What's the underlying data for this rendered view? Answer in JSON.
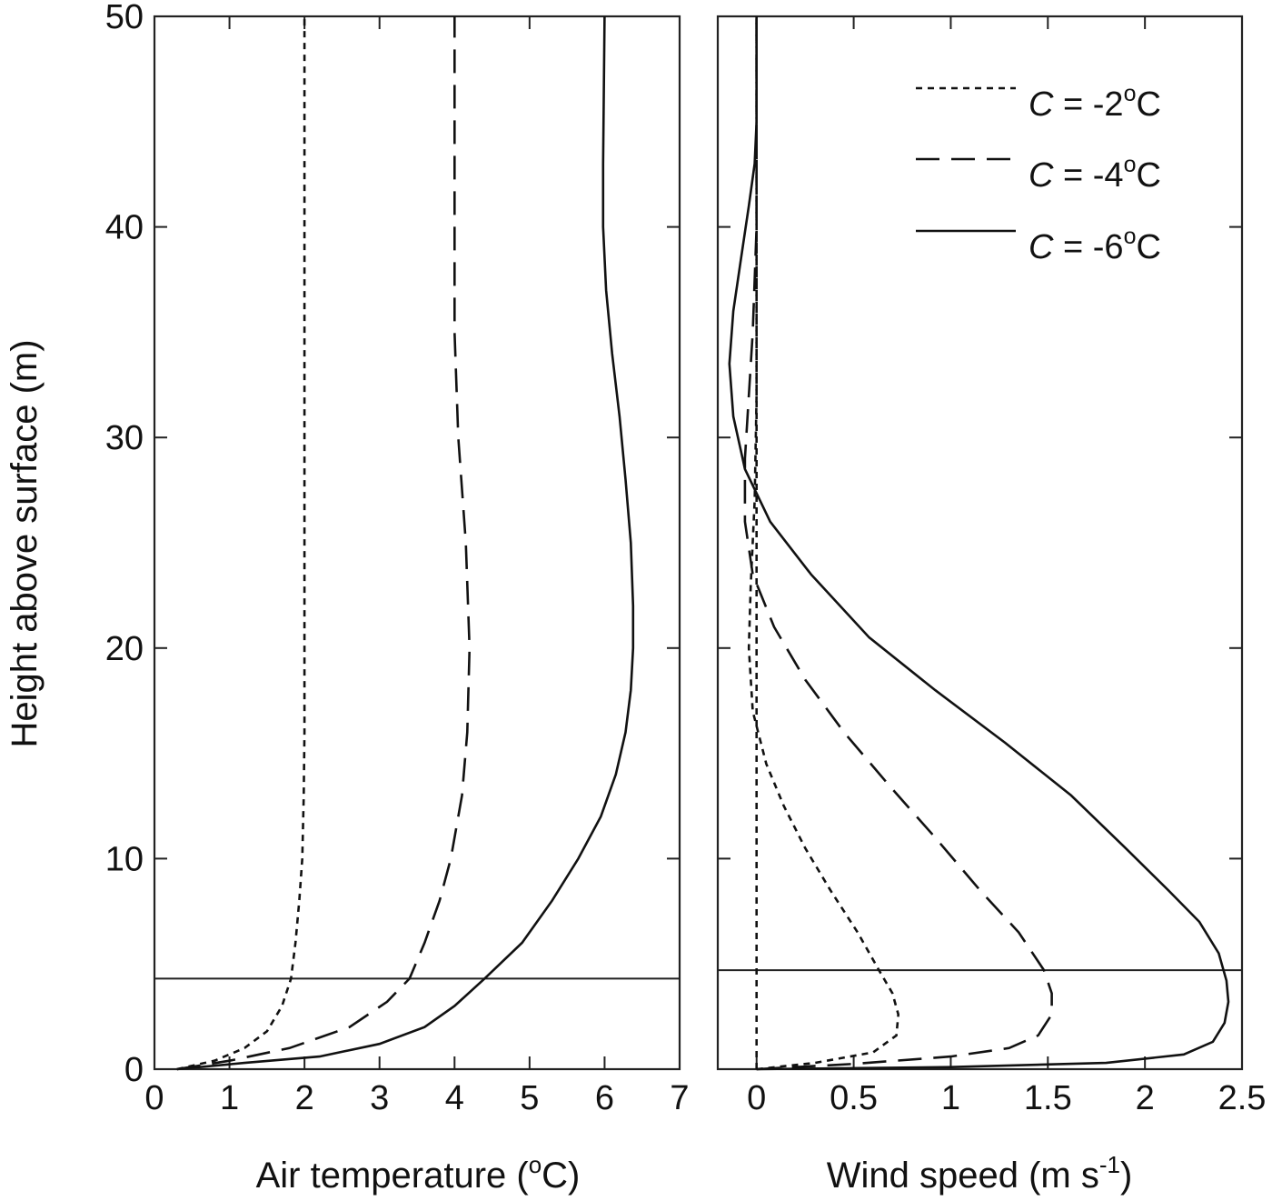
{
  "chart_data": [
    {
      "type": "line",
      "xlabel": {
        "main": "Air temperature (",
        "sup": "o",
        "tail": "C)"
      },
      "ylabel": "Height above surface (m)",
      "xlim": [
        0,
        7
      ],
      "ylim": [
        0,
        50
      ],
      "xticks": [
        "0",
        "1",
        "2",
        "3",
        "4",
        "5",
        "6",
        "7"
      ],
      "yticks": [
        "0",
        "10",
        "20",
        "30",
        "40",
        "50"
      ],
      "reference_line_height": 4.3,
      "series": [
        {
          "dash": "dotted",
          "points": [
            [
              0.3,
              0.0
            ],
            [
              0.8,
              0.4
            ],
            [
              1.2,
              1.0
            ],
            [
              1.5,
              1.8
            ],
            [
              1.7,
              3.0
            ],
            [
              1.82,
              4.3
            ],
            [
              1.88,
              6.0
            ],
            [
              1.93,
              8.0
            ],
            [
              1.97,
              10.0
            ],
            [
              1.99,
              13.0
            ],
            [
              2.0,
              16.0
            ],
            [
              2.0,
              20.0
            ],
            [
              2.0,
              30.0
            ],
            [
              2.0,
              40.0
            ],
            [
              2.0,
              50.0
            ]
          ]
        },
        {
          "dash": "dashed",
          "points": [
            [
              0.3,
              0.0
            ],
            [
              1.0,
              0.4
            ],
            [
              1.8,
              1.0
            ],
            [
              2.6,
              2.0
            ],
            [
              3.1,
              3.2
            ],
            [
              3.4,
              4.3
            ],
            [
              3.6,
              6.0
            ],
            [
              3.8,
              8.0
            ],
            [
              3.95,
              10.0
            ],
            [
              4.1,
              13.0
            ],
            [
              4.17,
              16.0
            ],
            [
              4.2,
              20.0
            ],
            [
              4.15,
              25.0
            ],
            [
              4.05,
              30.0
            ],
            [
              4.0,
              35.0
            ],
            [
              4.0,
              40.0
            ],
            [
              4.0,
              50.0
            ]
          ]
        },
        {
          "dash": "solid",
          "points": [
            [
              0.3,
              0.0
            ],
            [
              1.2,
              0.3
            ],
            [
              2.2,
              0.6
            ],
            [
              3.0,
              1.2
            ],
            [
              3.6,
              2.0
            ],
            [
              4.0,
              3.0
            ],
            [
              4.4,
              4.3
            ],
            [
              4.9,
              6.0
            ],
            [
              5.3,
              8.0
            ],
            [
              5.65,
              10.0
            ],
            [
              5.95,
              12.0
            ],
            [
              6.15,
              14.0
            ],
            [
              6.28,
              16.0
            ],
            [
              6.35,
              18.0
            ],
            [
              6.38,
              20.0
            ],
            [
              6.38,
              22.0
            ],
            [
              6.35,
              25.0
            ],
            [
              6.28,
              28.0
            ],
            [
              6.2,
              31.0
            ],
            [
              6.1,
              34.0
            ],
            [
              6.02,
              37.0
            ],
            [
              5.98,
              40.0
            ],
            [
              5.98,
              43.0
            ],
            [
              6.0,
              50.0
            ]
          ]
        }
      ]
    },
    {
      "type": "line",
      "xlabel": {
        "main": "Wind speed (m s",
        "sup": "-1",
        "tail": ")"
      },
      "xlim": [
        -0.2,
        2.5
      ],
      "ylim": [
        0,
        50
      ],
      "xticks": [
        "0",
        "0.5",
        "1",
        "1.5",
        "2",
        "2.5"
      ],
      "yticks": [
        "",
        "",
        "",
        "",
        "",
        ""
      ],
      "reference_line_height": 4.7,
      "series": [
        {
          "dash": "dotted",
          "points": [
            [
              0.0,
              0.0
            ],
            [
              0.0,
              50.0
            ]
          ]
        },
        {
          "dash": "dotted",
          "points": [
            [
              0.0,
              0.0
            ],
            [
              0.3,
              0.3
            ],
            [
              0.6,
              0.8
            ],
            [
              0.72,
              1.6
            ],
            [
              0.73,
              2.6
            ],
            [
              0.7,
              3.6
            ],
            [
              0.63,
              4.7
            ],
            [
              0.52,
              6.5
            ],
            [
              0.38,
              8.5
            ],
            [
              0.25,
              10.5
            ],
            [
              0.14,
              12.5
            ],
            [
              0.05,
              14.5
            ],
            [
              -0.02,
              17.0
            ],
            [
              -0.04,
              20.0
            ],
            [
              -0.03,
              23.0
            ],
            [
              -0.01,
              27.0
            ],
            [
              0.0,
              32.0
            ],
            [
              0.0,
              40.0
            ],
            [
              0.0,
              50.0
            ]
          ]
        },
        {
          "dash": "dashed",
          "points": [
            [
              0.0,
              0.0
            ],
            [
              0.5,
              0.25
            ],
            [
              1.0,
              0.6
            ],
            [
              1.3,
              1.0
            ],
            [
              1.45,
              1.6
            ],
            [
              1.52,
              2.6
            ],
            [
              1.52,
              3.6
            ],
            [
              1.48,
              4.7
            ],
            [
              1.35,
              6.5
            ],
            [
              1.15,
              8.5
            ],
            [
              0.92,
              11.0
            ],
            [
              0.68,
              13.5
            ],
            [
              0.45,
              16.0
            ],
            [
              0.25,
              18.5
            ],
            [
              0.09,
              21.0
            ],
            [
              -0.02,
              23.5
            ],
            [
              -0.06,
              26.0
            ],
            [
              -0.06,
              29.0
            ],
            [
              -0.04,
              32.0
            ],
            [
              -0.02,
              35.0
            ],
            [
              0.0,
              40.0
            ],
            [
              0.0,
              50.0
            ]
          ]
        },
        {
          "dash": "solid",
          "points": [
            [
              0.0,
              0.0
            ],
            [
              1.0,
              0.1
            ],
            [
              1.8,
              0.3
            ],
            [
              2.2,
              0.7
            ],
            [
              2.35,
              1.3
            ],
            [
              2.41,
              2.2
            ],
            [
              2.43,
              3.2
            ],
            [
              2.42,
              4.2
            ],
            [
              2.38,
              5.5
            ],
            [
              2.28,
              7.0
            ],
            [
              2.12,
              8.5
            ],
            [
              1.9,
              10.5
            ],
            [
              1.62,
              13.0
            ],
            [
              1.28,
              15.5
            ],
            [
              0.92,
              18.0
            ],
            [
              0.58,
              20.5
            ],
            [
              0.28,
              23.5
            ],
            [
              0.07,
              26.0
            ],
            [
              -0.06,
              28.5
            ],
            [
              -0.12,
              31.0
            ],
            [
              -0.14,
              33.5
            ],
            [
              -0.12,
              36.0
            ],
            [
              -0.08,
              38.5
            ],
            [
              -0.04,
              41.0
            ],
            [
              -0.01,
              43.0
            ],
            [
              0.0,
              45.0
            ],
            [
              0.0,
              50.0
            ]
          ]
        }
      ]
    }
  ],
  "legend": [
    {
      "var": "C",
      "text": " = -2",
      "sup": "o",
      "unit": "C",
      "dash": "dotted"
    },
    {
      "var": "C",
      "text": " = -4",
      "sup": "o",
      "unit": "C",
      "dash": "dashed"
    },
    {
      "var": "C",
      "text": " = -6",
      "sup": "o",
      "unit": "C",
      "dash": "solid"
    }
  ]
}
